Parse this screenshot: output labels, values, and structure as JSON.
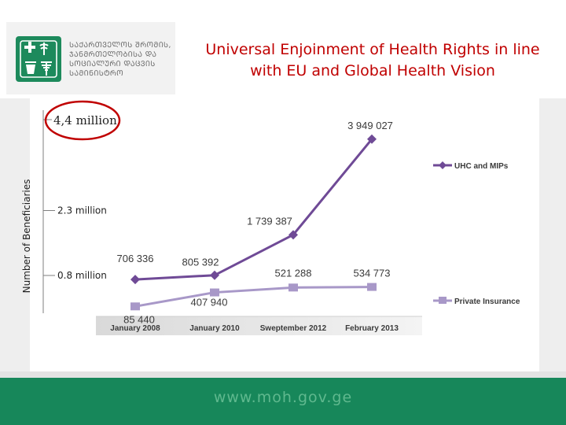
{
  "header": {
    "logo_text": "ᲡᲐᲥᲐᲠᲗᲕᲔᲚᲝᲡ ᲨᲠᲝᲛᲘᲡ,\nᲯᲐᲜᲛᲠᲗᲔᲚᲝᲑᲘᲡᲐ ᲓᲐ\nᲡᲝᲪᲘᲐᲚᲣᲠᲘ ᲓᲐᲪᲕᲘᲡ\nᲡᲐᲛᲘᲜᲘᲡᲢᲠᲝ",
    "title_line1": "Universal Enjoinment of Health Rights in line",
    "title_line2": "with EU and Global Health Vision"
  },
  "footer": {
    "url": "www.moh.gov.ge"
  },
  "colors": {
    "title": "#c00000",
    "footer": "#17875a",
    "uhc": "#6f4a96",
    "private": "#a898c8",
    "highlight": "#c00000"
  },
  "chart_data": {
    "type": "line",
    "categories": [
      "January 2008",
      "January 2010",
      "Sweptember 2012",
      "February 2013"
    ],
    "series": [
      {
        "name": "UHC and MIPs",
        "values": [
          706336,
          805392,
          1739387,
          3949027
        ],
        "labels": [
          "706 336",
          "805 392",
          "1 739 387",
          "3 949 027"
        ]
      },
      {
        "name": "Private Insurance",
        "values": [
          85440,
          407940,
          521288,
          534773
        ],
        "labels": [
          "85 440",
          "407 940",
          "521 288",
          "534 773"
        ]
      }
    ],
    "ylabel": "Number of Beneficiaries",
    "y_reference_labels": [
      {
        "value": 4400000,
        "label": "4,4 million",
        "highlighted": true
      },
      {
        "value": 2300000,
        "label": "2.3 million"
      },
      {
        "value": 800000,
        "label": "0.8 million"
      }
    ],
    "legend_position": "right",
    "grid": false
  }
}
